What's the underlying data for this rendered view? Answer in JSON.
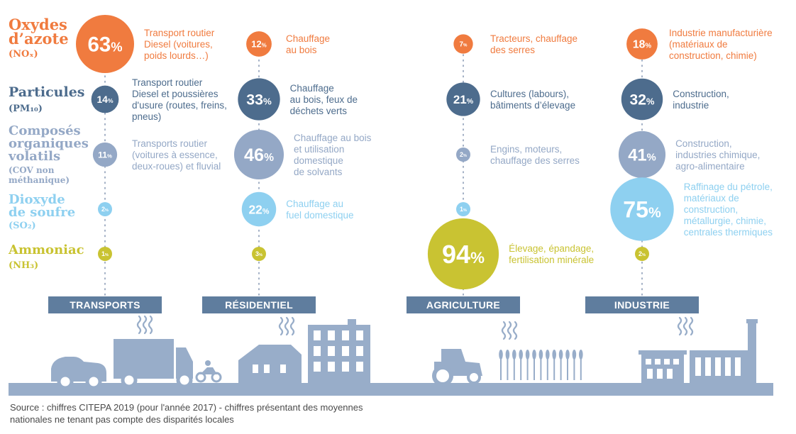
{
  "colors": {
    "nox": "#f07b3f",
    "pm": "#4d6c8d",
    "cov": "#94a8c6",
    "so2": "#8ed0f0",
    "nh3": "#c9c332",
    "sector_badge": "#5f7d9e",
    "landscape": "#98adc9"
  },
  "pollutants": [
    {
      "key": "nox",
      "lines": [
        "Oxydes",
        "d’azote"
      ],
      "formula": "(NOₓ)"
    },
    {
      "key": "pm",
      "lines": [
        "Particules"
      ],
      "formula": "(PM₁₀)"
    },
    {
      "key": "cov",
      "lines": [
        "Composés",
        "organiques",
        "volatils"
      ],
      "formula_lines": [
        "(COV non",
        "méthanique)"
      ]
    },
    {
      "key": "so2",
      "lines": [
        "Dioxyde",
        "de soufre"
      ],
      "formula": "(SO₂)"
    },
    {
      "key": "nh3",
      "lines": [
        "Ammoniac"
      ],
      "formula": "(NH₃)"
    }
  ],
  "sectors": [
    {
      "name": "TRANSPORTS",
      "icon": "car-truck-motorcycle-icon"
    },
    {
      "name": "RÉSIDENTIEL",
      "icon": "houses-icon"
    },
    {
      "name": "AGRICULTURE",
      "icon": "tractor-crops-icon"
    },
    {
      "name": "INDUSTRIE",
      "icon": "factory-icon"
    }
  ],
  "chart_data": {
    "type": "table",
    "unit": "%",
    "rows": [
      "Oxydes d’azote (NOₓ)",
      "Particules (PM₁₀)",
      "Composés organiques volatils (COV non méthanique)",
      "Dioxyde de soufre (SO₂)",
      "Ammoniac (NH₃)"
    ],
    "columns": [
      "TRANSPORTS",
      "RÉSIDENTIEL",
      "AGRICULTURE",
      "INDUSTRIE"
    ],
    "values": [
      [
        63,
        12,
        7,
        18
      ],
      [
        14,
        33,
        21,
        32
      ],
      [
        11,
        46,
        2,
        41
      ],
      [
        2,
        22,
        1,
        75
      ],
      [
        1,
        3,
        94,
        2
      ]
    ],
    "descriptions": [
      [
        "Transport routier Diesel (voitures, poids lourds…)",
        "Chauffage au bois",
        "Tracteurs, chauffage des serres",
        "Industrie manufacturière (matériaux de construction, chimie)"
      ],
      [
        "Transport routier Diesel et poussières d’usure (routes, freins, pneus)",
        "Chauffage au bois, feux de déchets verts",
        "Cultures (labours), bâtiments d’élevage",
        "Construction, industrie"
      ],
      [
        "Transports routier (voitures à essence, deux-roues) et fluvial",
        "Chauffage au bois et utilisation domestique de solvants",
        "Engins, moteurs, chauffage des serres",
        "Construction, industries chimique, agro-alimentaire"
      ],
      [
        "",
        "Chauffage au fuel domestique",
        "",
        "Raffinage du pétrole, matériaux de construction, métallurgie, chimie, centrales thermiques"
      ],
      [
        "",
        "",
        "Élevage, épandage, fertilisation minérale",
        ""
      ]
    ],
    "description_lines": [
      [
        [
          "Transport routier",
          "Diesel (voitures,",
          "poids lourds…)"
        ],
        [
          "Chauffage",
          "au bois"
        ],
        [
          "Tracteurs, chauffage",
          "des serres"
        ],
        [
          "Industrie manufacturière",
          "(matériaux de",
          "construction, chimie)"
        ]
      ],
      [
        [
          "Transport routier",
          "Diesel et poussières",
          "d'usure (routes, freins,",
          "pneus)"
        ],
        [
          "Chauffage",
          "au bois, feux de",
          "déchets verts"
        ],
        [
          "Cultures (labours),",
          "bâtiments d’élevage"
        ],
        [
          "Construction,",
          "industrie"
        ]
      ],
      [
        [
          "Transports routier",
          "(voitures à essence,",
          "deux-roues) et fluvial"
        ],
        [
          "Chauffage au bois",
          "et utilisation",
          "domestique",
          "de solvants"
        ],
        [
          "Engins, moteurs,",
          "chauffage des serres"
        ],
        [
          "Construction,",
          "industries chimique,",
          "agro-alimentaire"
        ]
      ],
      [
        [],
        [
          "Chauffage au",
          "fuel domestique"
        ],
        [],
        [
          "Raffinage du pétrole,",
          "matériaux de",
          "construction,",
          "métallurgie, chimie,",
          "centrales thermiques"
        ]
      ],
      [
        [],
        [],
        [
          "Élevage, épandage,",
          "fertilisation minérale"
        ],
        []
      ]
    ]
  },
  "source_text": "Source : chiffres CITEPA 2019 (pour l'année 2017) - chiffres présentant des moyennes nationales ne tenant pas compte des disparités locales"
}
